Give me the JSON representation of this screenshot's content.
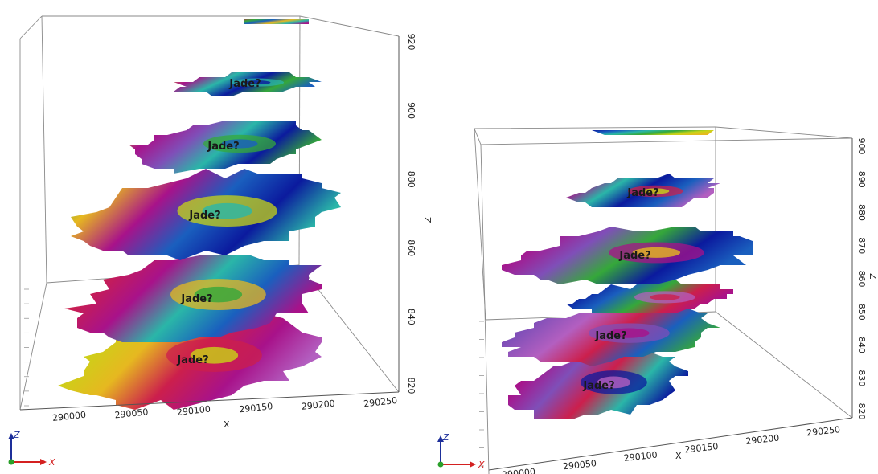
{
  "chart_data": [
    {
      "type": "other",
      "panel": "left",
      "xlabel": "X",
      "zlabel": "Z",
      "x_ticks": [
        "290000",
        "290050",
        "290100",
        "290150",
        "290200",
        "290250"
      ],
      "z_ticks": [
        "820",
        "840",
        "860",
        "880",
        "900",
        "920"
      ],
      "annotation": "Jade?",
      "slices": [
        {
          "z": 830,
          "labeled": true
        },
        {
          "z": 850,
          "labeled": true
        },
        {
          "z": 865,
          "labeled": true
        },
        {
          "z": 885,
          "labeled": true
        },
        {
          "z": 905,
          "labeled": true
        },
        {
          "z": 920,
          "labeled": false
        }
      ],
      "orientation_axes": [
        "Z",
        "X"
      ]
    },
    {
      "type": "other",
      "panel": "right",
      "xlabel": "X",
      "zlabel": "Z",
      "x_ticks": [
        "290000",
        "290050",
        "290100",
        "290150",
        "290200",
        "290250"
      ],
      "z_ticks": [
        "820",
        "830",
        "840",
        "850",
        "860",
        "870",
        "880",
        "890",
        "900"
      ],
      "annotation": "Jade?",
      "slices": [
        {
          "z": 826,
          "labeled": true
        },
        {
          "z": 845,
          "labeled": true
        },
        {
          "z": 858,
          "labeled": false
        },
        {
          "z": 868,
          "labeled": true
        },
        {
          "z": 885,
          "labeled": true
        },
        {
          "z": 900,
          "labeled": false
        }
      ],
      "orientation_axes": [
        "Z",
        "X"
      ]
    }
  ],
  "colors": {
    "colormap": [
      "#7f4fb8",
      "#b35fc0",
      "#a8128a",
      "#cc1f4c",
      "#e6b820",
      "#c8d417",
      "#35a83a",
      "#2ab6a8",
      "#1a5fbe",
      "#0b1a9e"
    ],
    "frame": "#8a8a8a",
    "axis_z": "#1d2f9a",
    "axis_x": "#d42020",
    "axis_origin": "#2aa02a"
  }
}
